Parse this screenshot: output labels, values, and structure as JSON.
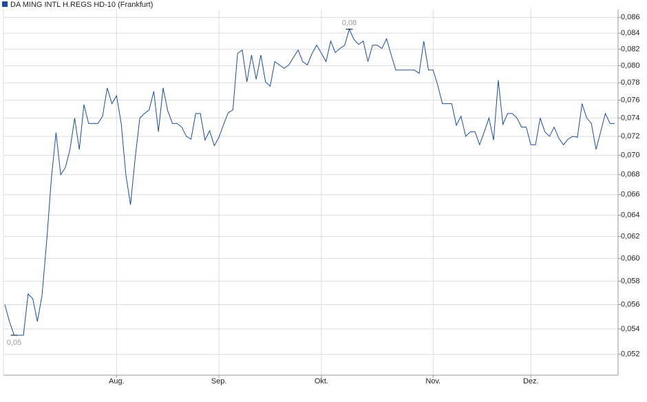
{
  "chart_data": {
    "type": "line",
    "log_scale": true,
    "grid": true,
    "legend_position": "top-left",
    "categories": [
      null,
      null,
      null,
      null,
      null,
      null,
      null,
      null,
      null,
      null,
      null,
      null,
      null,
      null,
      null,
      null,
      null,
      null,
      null,
      null,
      null,
      null,
      null,
      null,
      "Aug.",
      null,
      null,
      null,
      null,
      null,
      null,
      null,
      null,
      null,
      null,
      null,
      null,
      null,
      null,
      null,
      null,
      null,
      null,
      null,
      null,
      null,
      "Sep.",
      null,
      null,
      null,
      null,
      null,
      null,
      null,
      null,
      null,
      null,
      null,
      null,
      null,
      null,
      null,
      null,
      null,
      null,
      null,
      null,
      null,
      "Okt.",
      null,
      null,
      null,
      null,
      null,
      null,
      null,
      null,
      null,
      null,
      null,
      null,
      null,
      null,
      null,
      null,
      null,
      null,
      null,
      null,
      null,
      null,
      null,
      "Nov.",
      null,
      null,
      null,
      null,
      null,
      null,
      null,
      null,
      null,
      null,
      null,
      null,
      null,
      null,
      null,
      null,
      null,
      null,
      null,
      null,
      "Dez.",
      null,
      null,
      null,
      null,
      null,
      null,
      null,
      null,
      null,
      null,
      null,
      null,
      null,
      null,
      null,
      null,
      null,
      null
    ],
    "series": [
      {
        "name": "DA MING INTL H.REGS HD-10 (Frankfurt)",
        "color": "#1a4b9c",
        "values": [
          0.056,
          0.0546,
          0.0535,
          0.0535,
          0.0535,
          0.0569,
          0.0565,
          0.0546,
          0.0568,
          0.0616,
          0.0676,
          0.0724,
          0.068,
          0.0687,
          0.0706,
          0.074,
          0.0706,
          0.0755,
          0.0734,
          0.0734,
          0.0734,
          0.0742,
          0.0774,
          0.0756,
          0.0765,
          0.0734,
          0.068,
          0.065,
          0.0697,
          0.074,
          0.0745,
          0.0749,
          0.077,
          0.0725,
          0.0774,
          0.0748,
          0.0734,
          0.0734,
          0.073,
          0.072,
          0.0717,
          0.0745,
          0.0745,
          0.0716,
          0.0726,
          0.071,
          0.0719,
          0.0733,
          0.0746,
          0.0749,
          0.0815,
          0.0819,
          0.0781,
          0.0813,
          0.0784,
          0.0813,
          0.0781,
          0.0776,
          0.0805,
          0.0801,
          0.0797,
          0.0801,
          0.081,
          0.0819,
          0.0805,
          0.0801,
          0.0815,
          0.0825,
          0.0815,
          0.0805,
          0.083,
          0.0816,
          0.0821,
          0.0825,
          0.0845,
          0.0832,
          0.0826,
          0.083,
          0.0805,
          0.0825,
          0.0825,
          0.0821,
          0.0833,
          0.0813,
          0.0795,
          0.0795,
          0.0795,
          0.0795,
          0.0795,
          0.0791,
          0.083,
          0.0795,
          0.0795,
          0.0777,
          0.0756,
          0.0756,
          0.0756,
          0.0732,
          0.0742,
          0.072,
          0.0725,
          0.0725,
          0.0711,
          0.0725,
          0.074,
          0.0716,
          0.0783,
          0.0733,
          0.0745,
          0.0745,
          0.074,
          0.073,
          0.073,
          0.0711,
          0.0711,
          0.074,
          0.0725,
          0.072,
          0.073,
          0.0718,
          0.0711,
          0.0717,
          0.072,
          0.0719,
          0.0756,
          0.074,
          0.0734,
          0.0706,
          0.0725,
          0.0745,
          0.0734,
          0.0734
        ],
        "value_labels": [
          null,
          null,
          "0,05",
          null,
          null,
          null,
          null,
          null,
          null,
          null,
          null,
          null,
          null,
          null,
          null,
          null,
          null,
          null,
          null,
          null,
          null,
          null,
          null,
          null,
          null,
          null,
          null,
          null,
          null,
          null,
          null,
          null,
          null,
          null,
          null,
          null,
          null,
          null,
          null,
          null,
          null,
          null,
          null,
          null,
          null,
          null,
          null,
          null,
          null,
          null,
          null,
          null,
          null,
          null,
          null,
          null,
          null,
          null,
          null,
          null,
          null,
          null,
          null,
          null,
          null,
          null,
          null,
          null,
          null,
          null,
          null,
          null,
          null,
          null,
          "0,08",
          null,
          null,
          null,
          null,
          null,
          null,
          null,
          null,
          null,
          null,
          null,
          null,
          null,
          null,
          null,
          null,
          null,
          null,
          null,
          null,
          null,
          null,
          null,
          null,
          null,
          null,
          null,
          null,
          null,
          null,
          null,
          null,
          null,
          null,
          null,
          null,
          null,
          null,
          null,
          null,
          null,
          null,
          null,
          null,
          null,
          null,
          null,
          null,
          null,
          null,
          null,
          null,
          null,
          null,
          null,
          null,
          null
        ]
      }
    ],
    "ylim": [
      0.0504,
      0.087
    ],
    "yticks": [
      {
        "value": 0.052,
        "label": "0,052"
      },
      {
        "value": 0.054,
        "label": "0,054"
      },
      {
        "value": 0.056,
        "label": "0,056"
      },
      {
        "value": 0.058,
        "label": "0,058"
      },
      {
        "value": 0.06,
        "label": "0,060"
      },
      {
        "value": 0.062,
        "label": "0,062"
      },
      {
        "value": 0.064,
        "label": "0,064"
      },
      {
        "value": 0.066,
        "label": "0,066"
      },
      {
        "value": 0.068,
        "label": "0,068"
      },
      {
        "value": 0.07,
        "label": "0,070"
      },
      {
        "value": 0.072,
        "label": "0,072"
      },
      {
        "value": 0.074,
        "label": "0,074"
      },
      {
        "value": 0.076,
        "label": "0,076"
      },
      {
        "value": 0.078,
        "label": "0,078"
      },
      {
        "value": 0.08,
        "label": "0,080"
      },
      {
        "value": 0.082,
        "label": "0,082"
      },
      {
        "value": 0.084,
        "label": "0,084"
      },
      {
        "value": 0.086,
        "label": "0,086"
      }
    ]
  }
}
